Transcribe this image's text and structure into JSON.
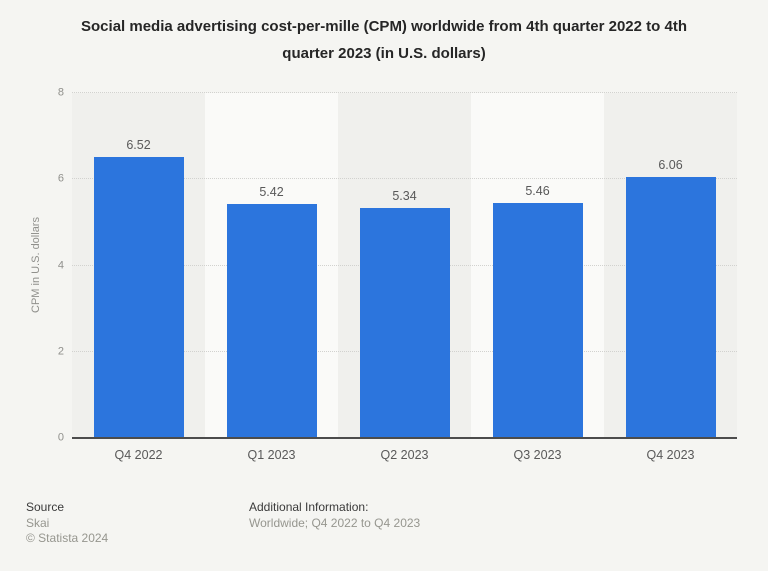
{
  "header": {
    "title_line1": "Social media advertising cost-per-mille (CPM) worldwide from 4th quarter 2022 to 4th",
    "title_line2": "quarter 2023 (in U.S. dollars)"
  },
  "chart_data": {
    "type": "bar",
    "title": "Social media advertising cost-per-mille (CPM) worldwide from 4th quarter 2022 to 4th quarter 2023 (in U.S. dollars)",
    "categories": [
      "Q4 2022",
      "Q1 2023",
      "Q2 2023",
      "Q3 2023",
      "Q4 2023"
    ],
    "values": [
      6.52,
      5.42,
      5.34,
      5.46,
      6.06
    ],
    "value_labels": [
      "6.52",
      "5.42",
      "5.34",
      "5.46",
      "6.06"
    ],
    "xlabel": "",
    "ylabel": "CPM in U.S. dollars",
    "ylim": [
      0,
      8
    ],
    "yticks": [
      0,
      2,
      4,
      6,
      8
    ],
    "grid": "horizontal-dotted",
    "legend": "none"
  },
  "colors": {
    "background": "#f5f5f2",
    "band_odd": "#f0f0ed",
    "band_even": "#fafaf8",
    "bar": "#2c75dd",
    "gridline": "#d2d2cf",
    "baseline": "#4c4c4c",
    "title_text": "#262626",
    "label_text": "#595959",
    "tick_text": "#90908c"
  },
  "footer": {
    "source_label": "Source",
    "source_value": "Skai",
    "copyright": "© Statista 2024",
    "additional_info_label": "Additional Information:",
    "additional_info_value": "Worldwide; Q4 2022 to Q4 2023"
  }
}
